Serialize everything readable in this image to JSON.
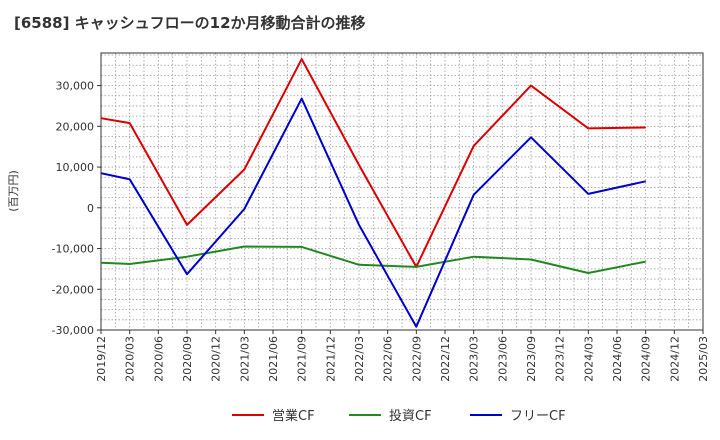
{
  "chart_data": {
    "type": "line",
    "title": "[6588]  キャッシュフローの12か月移動合計の推移",
    "ylabel": "(百万円)",
    "xlabel": "",
    "ylim": [
      -30000,
      38000
    ],
    "yticks": [
      30000,
      20000,
      10000,
      0,
      -10000,
      -20000,
      -30000
    ],
    "ytick_labels": [
      "30,000",
      "20,000",
      "10,000",
      "0",
      "-10,000",
      "-20,000",
      "-30,000"
    ],
    "categories": [
      "2019/12",
      "2020/03",
      "2020/06",
      "2020/09",
      "2020/12",
      "2021/03",
      "2021/06",
      "2021/09",
      "2021/12",
      "2022/03",
      "2022/06",
      "2022/09",
      "2022/12",
      "2023/03",
      "2023/06",
      "2023/09",
      "2023/12",
      "2024/03",
      "2024/06",
      "2024/09",
      "2024/12",
      "2025/03"
    ],
    "grid": true,
    "legend_position": "bottom",
    "series": [
      {
        "name": "営業CF",
        "color": "#dd0000",
        "values": [
          22000,
          20800,
          null,
          -4200,
          null,
          9400,
          null,
          36500,
          null,
          10500,
          null,
          -14500,
          null,
          15200,
          null,
          30000,
          null,
          19500,
          null,
          19700,
          null,
          null
        ]
      },
      {
        "name": "投資CF",
        "color": "#228822",
        "values": [
          -13500,
          -13800,
          null,
          -12000,
          null,
          -9500,
          null,
          -9600,
          null,
          -14000,
          null,
          -14500,
          null,
          -12000,
          null,
          -12700,
          null,
          -16000,
          null,
          -13200,
          null,
          null
        ]
      },
      {
        "name": "フリーCF",
        "color": "#0000cc",
        "values": [
          8500,
          7000,
          null,
          -16300,
          null,
          -300,
          null,
          26800,
          null,
          -4200,
          null,
          -29200,
          null,
          3200,
          null,
          17300,
          null,
          3400,
          null,
          6500,
          null,
          null
        ]
      }
    ]
  }
}
